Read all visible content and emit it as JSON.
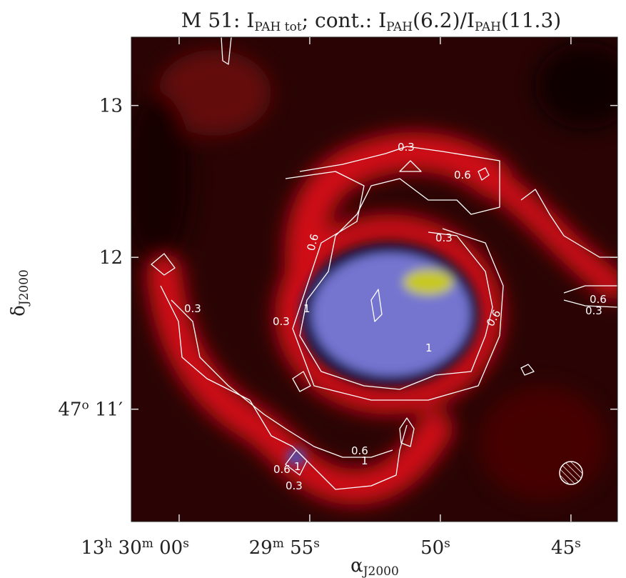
{
  "chart_data": {
    "type": "image",
    "title": [
      "M 51: I",
      "PAH tot",
      "; cont.: I",
      "PAH",
      "(6.2)/I",
      "PAH",
      "(11.3)"
    ],
    "xlabel": [
      "α",
      "J2000"
    ],
    "ylabel": [
      "δ",
      "J2000"
    ],
    "xlim": [
      61.83,
      43.22
    ],
    "xticks": [
      {
        "value": 60,
        "label": "13h 30m 00s"
      },
      {
        "value": 55,
        "label": "29m 55s"
      },
      {
        "value": 50,
        "label": "50s"
      },
      {
        "value": 45,
        "label": "45s"
      }
    ],
    "ylim": [
      10.26,
      13.45
    ],
    "yticks": [
      13,
      12,
      {
        "value": 11,
        "label": "47o 11′"
      }
    ],
    "contour_labels": [
      0.3,
      0.6,
      0.3,
      0.6,
      0.3,
      0.3,
      1,
      1,
      0.6,
      0.6,
      0.3,
      0.6,
      1,
      0.6,
      1,
      0.3
    ]
  }
}
